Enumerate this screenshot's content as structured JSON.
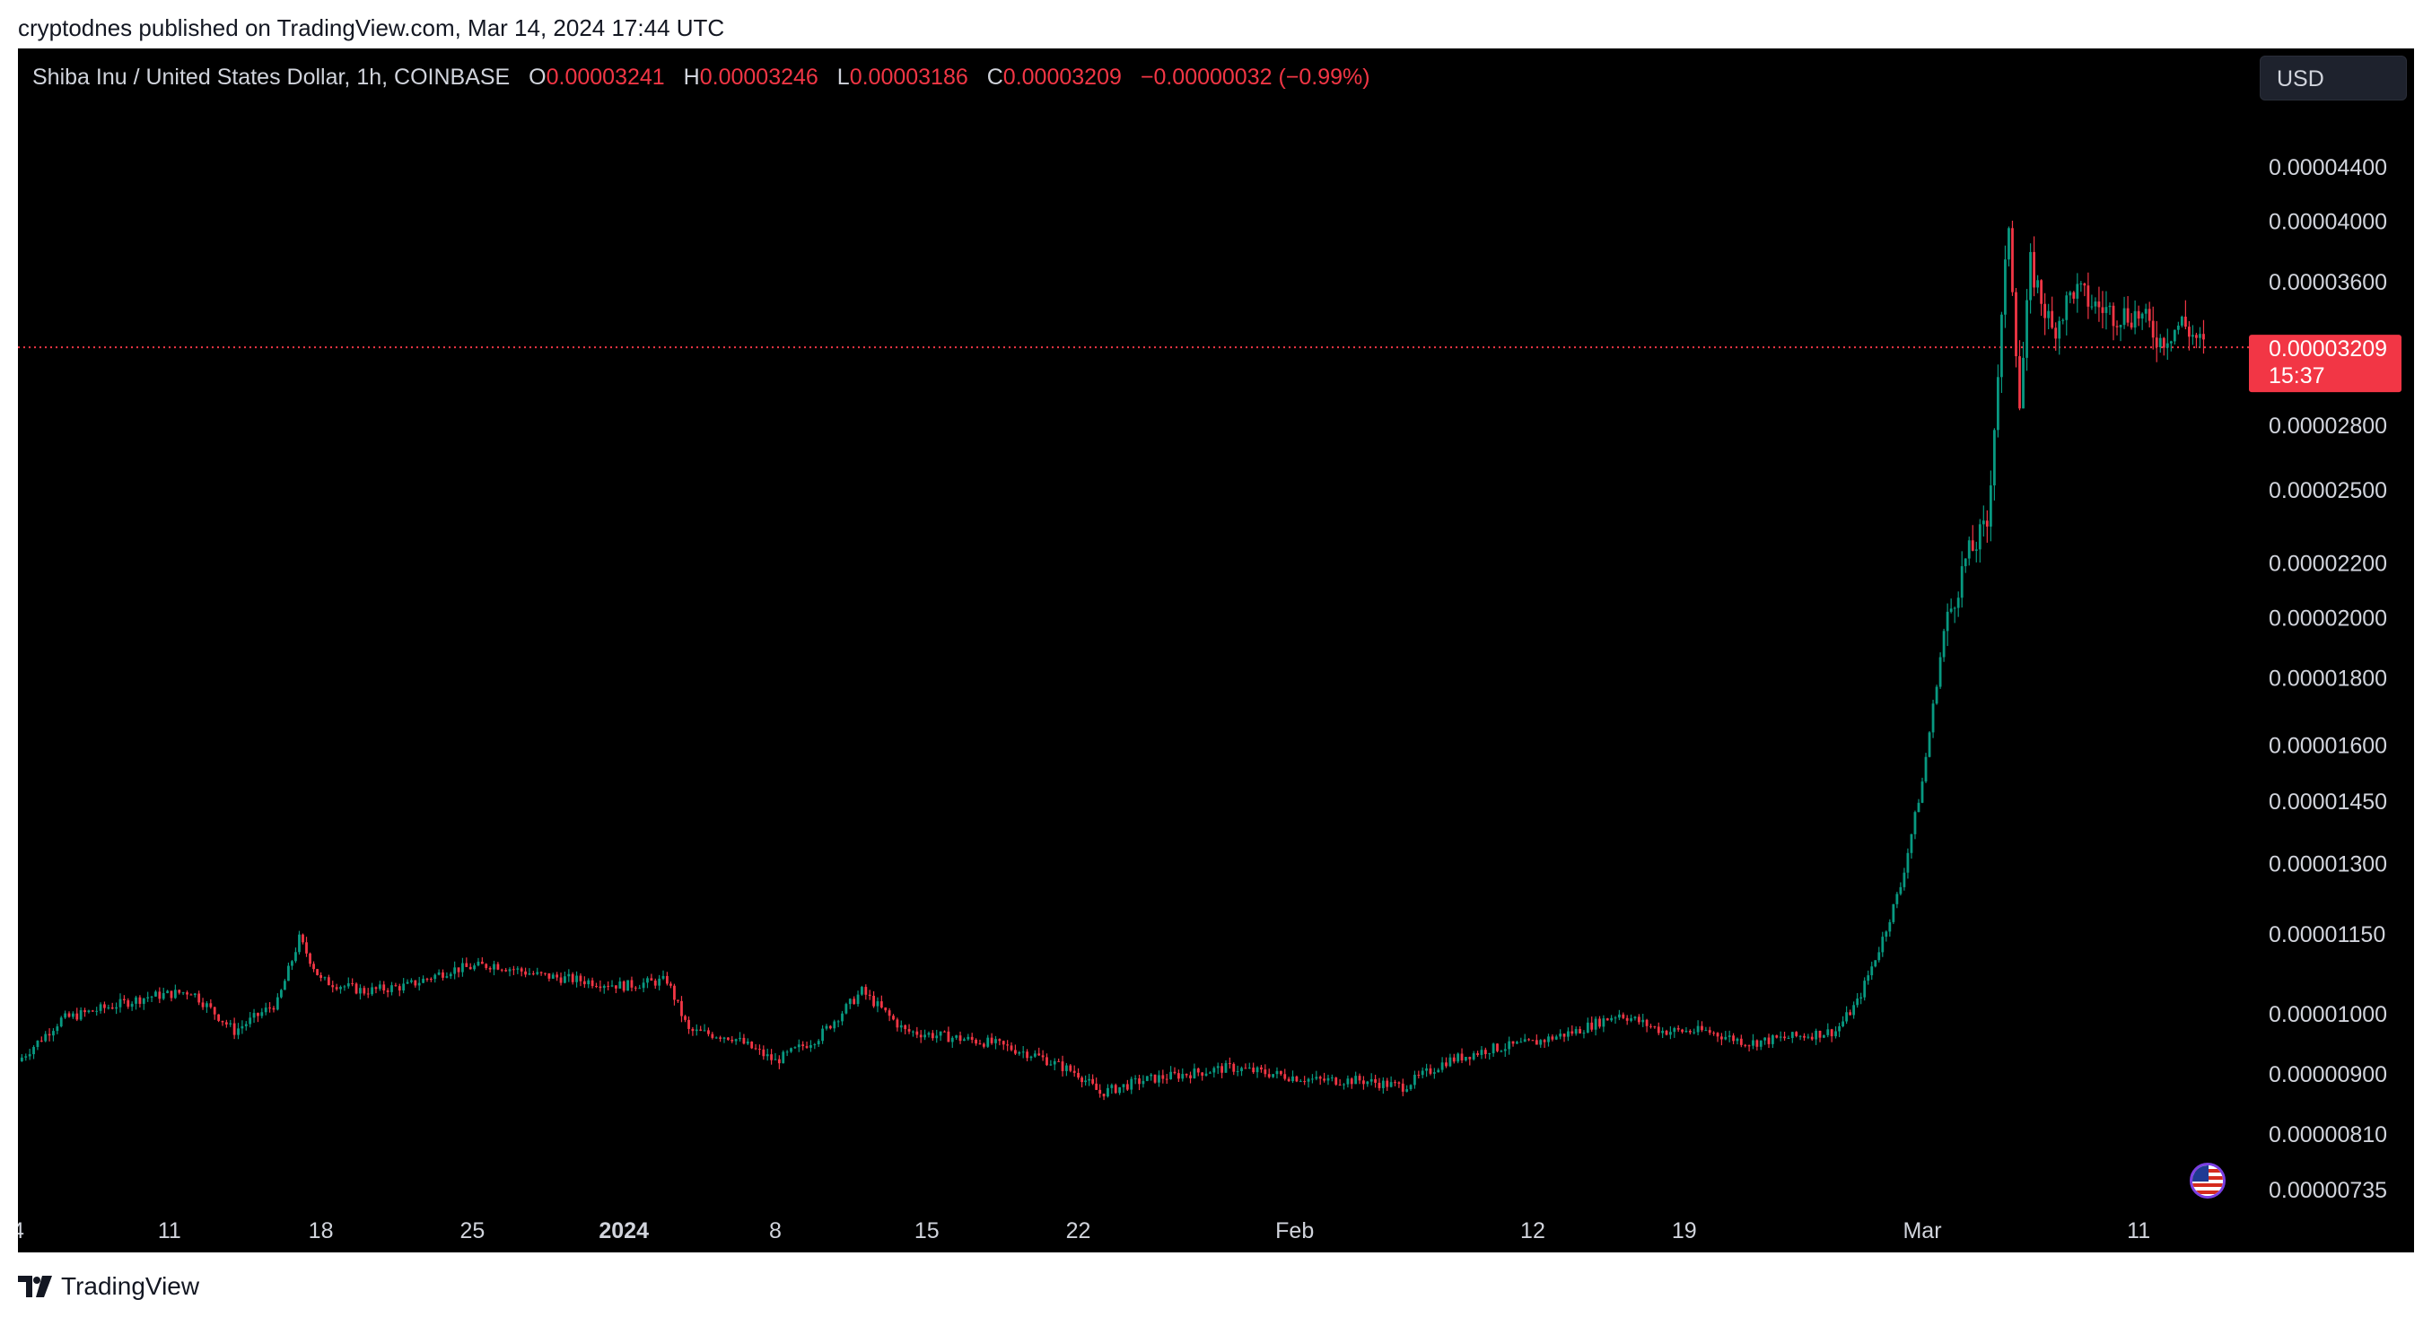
{
  "header": {
    "published_text": "cryptodnes published on TradingView.com, Mar 14, 2024 17:44 UTC"
  },
  "legend": {
    "symbol": "Shiba Inu / United States Dollar, 1h, COINBASE",
    "open_label": "O",
    "open": "0.00003241",
    "high_label": "H",
    "high": "0.00003246",
    "low_label": "L",
    "low": "0.00003186",
    "close_label": "C",
    "close": "0.00003209",
    "change": "−0.00000032 (−0.99%)"
  },
  "currency": "USD",
  "last_price": {
    "value": "0.00003209",
    "countdown": "15:37"
  },
  "footer": {
    "brand": "TradingView"
  },
  "colors": {
    "up": "#089981",
    "down": "#f23645",
    "background": "#000000",
    "text": "#d1d4dc"
  },
  "chart_data": {
    "type": "line",
    "scale": "log",
    "interval": "1h",
    "y_ticks": [
      "0.00004400",
      "0.00004000",
      "0.00003600",
      "0.00002800",
      "0.00002500",
      "0.00002200",
      "0.00002000",
      "0.00001800",
      "0.00001600",
      "0.00001450",
      "0.00001300",
      "0.00001150",
      "0.00001000",
      "0.00000900",
      "0.00000810",
      "0.00000735"
    ],
    "x_ticks": [
      "4",
      "11",
      "18",
      "25",
      "2024",
      "8",
      "15",
      "22",
      "Feb",
      "12",
      "19",
      "Mar",
      "11"
    ],
    "x": [
      "2023-12-04",
      "2023-12-06",
      "2023-12-08",
      "2023-12-10",
      "2023-12-12",
      "2023-12-14",
      "2023-12-16",
      "2023-12-17",
      "2023-12-18",
      "2023-12-20",
      "2023-12-22",
      "2023-12-24",
      "2023-12-26",
      "2023-12-28",
      "2023-12-30",
      "2024-01-01",
      "2024-01-03",
      "2024-01-04",
      "2024-01-06",
      "2024-01-08",
      "2024-01-10",
      "2024-01-12",
      "2024-01-14",
      "2024-01-16",
      "2024-01-18",
      "2024-01-20",
      "2024-01-22",
      "2024-01-23",
      "2024-01-25",
      "2024-01-27",
      "2024-01-29",
      "2024-01-31",
      "2024-02-02",
      "2024-02-04",
      "2024-02-06",
      "2024-02-08",
      "2024-02-10",
      "2024-02-12",
      "2024-02-14",
      "2024-02-16",
      "2024-02-18",
      "2024-02-20",
      "2024-02-22",
      "2024-02-24",
      "2024-02-26",
      "2024-02-27",
      "2024-02-28",
      "2024-02-29",
      "2024-03-01",
      "2024-03-02",
      "2024-03-03",
      "2024-03-04",
      "2024-03-05",
      "2024-03-05T12",
      "2024-03-06",
      "2024-03-07",
      "2024-03-08",
      "2024-03-09",
      "2024-03-10",
      "2024-03-11",
      "2024-03-12",
      "2024-03-13",
      "2024-03-14"
    ],
    "close": [
      9.2e-06,
      9.9e-06,
      1.01e-05,
      1.03e-05,
      1.04e-05,
      9.7e-06,
      1.02e-05,
      1.14e-05,
      1.06e-05,
      1.04e-05,
      1.05e-05,
      1.08e-05,
      1.09e-05,
      1.07e-05,
      1.06e-05,
      1.05e-05,
      1.06e-05,
      9.7e-06,
      9.6e-06,
      9.2e-06,
      9.6e-06,
      1.04e-05,
      9.7e-06,
      9.6e-06,
      9.5e-06,
      9.3e-06,
      9e-06,
      8.7e-06,
      8.9e-06,
      9e-06,
      9.1e-06,
      9e-06,
      8.9e-06,
      8.9e-06,
      8.8e-06,
      9.2e-06,
      9.4e-06,
      9.5e-06,
      9.7e-06,
      1e-05,
      9.7e-06,
      9.7e-06,
      9.5e-06,
      9.6e-06,
      9.7e-06,
      1.02e-05,
      1.12e-05,
      1.25e-05,
      1.5e-05,
      1.95e-05,
      2.21e-05,
      2.35e-05,
      4e-05,
      2.9e-05,
      3.7e-05,
      3.3e-05,
      3.55e-05,
      3.45e-05,
      3.4e-05,
      3.4e-05,
      3.25e-05,
      3.35e-05,
      3.21e-05
    ],
    "ylim": [
      7.1e-06,
      4.7e-05
    ],
    "last_price": 3.209e-05
  }
}
